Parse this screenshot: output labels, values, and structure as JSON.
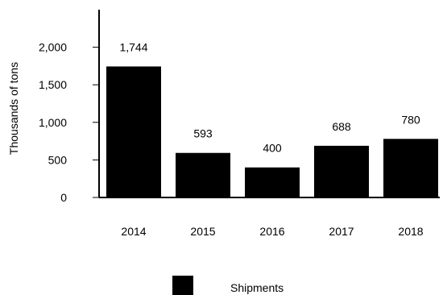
{
  "chart_data": {
    "type": "bar",
    "categories": [
      "2014",
      "2015",
      "2016",
      "2017",
      "2018"
    ],
    "series": [
      {
        "name": "Shipments",
        "values": [
          1744,
          593,
          400,
          688,
          780
        ]
      }
    ],
    "data_labels": [
      "1,744",
      "593",
      "400",
      "688",
      "780"
    ],
    "ylabel": "Thousands of tons",
    "xlabel": "",
    "yticks": [
      0,
      500,
      1000,
      1500,
      2000
    ],
    "ytick_labels": [
      "0",
      "500",
      "1,000",
      "1,500",
      "2,000"
    ],
    "ylim": [
      0,
      2500
    ],
    "grid": false,
    "legend_position": "bottom-center",
    "colors": {
      "bar": "#000000",
      "axis": "#000000",
      "text": "#000000"
    }
  }
}
